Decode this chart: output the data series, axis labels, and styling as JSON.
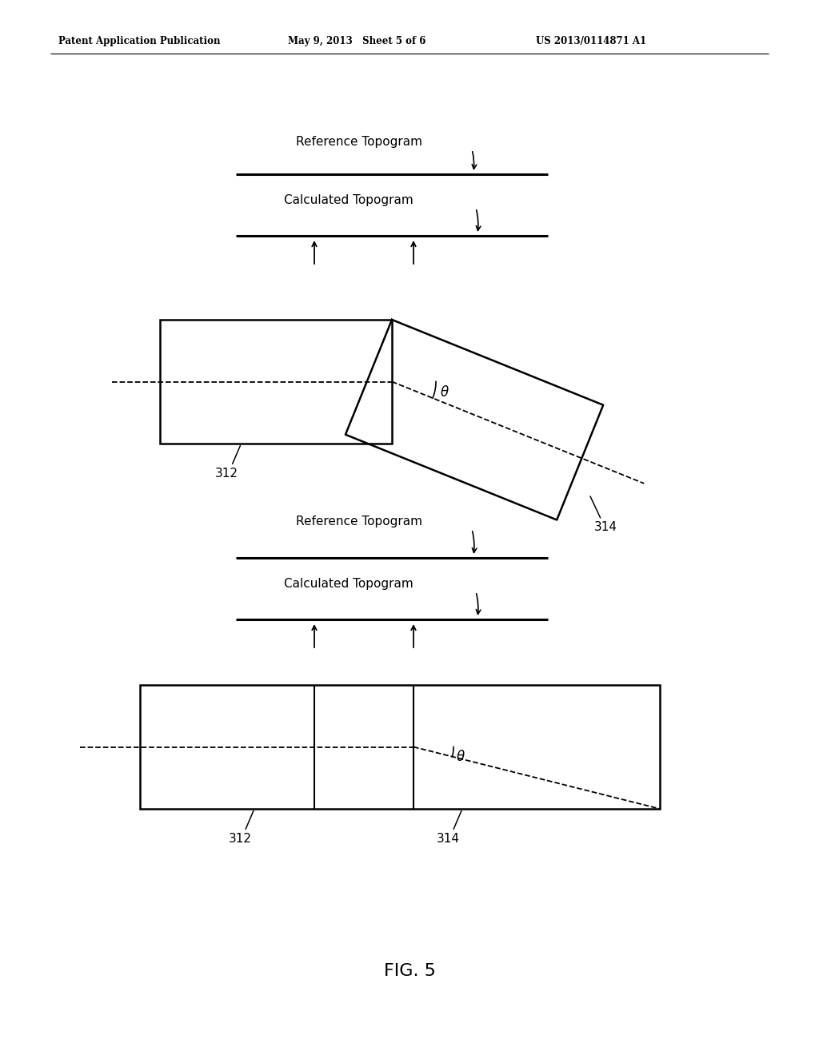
{
  "header_left": "Patent Application Publication",
  "header_mid": "May 9, 2013   Sheet 5 of 6",
  "header_right": "US 2013/0114871 A1",
  "fig_label": "FIG. 5",
  "ref_topogram": "Reference Topogram",
  "calc_topogram": "Calculated Topogram",
  "label_312": "312",
  "label_314": "314",
  "theta": "θ",
  "bg_color": "#ffffff"
}
